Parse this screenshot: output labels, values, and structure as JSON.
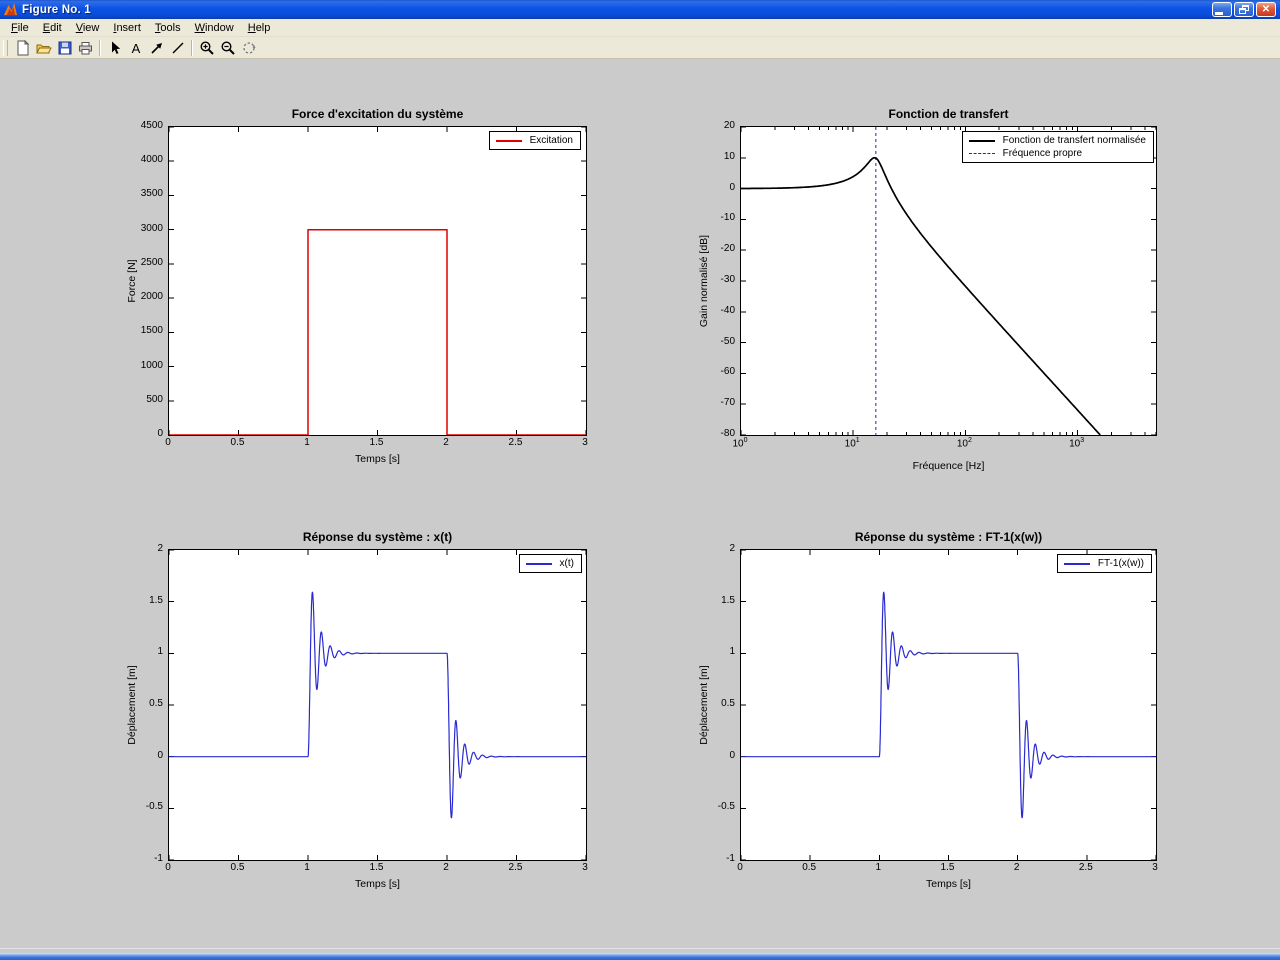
{
  "window": {
    "title": "Figure No. 1",
    "buttons": {
      "minimize": "minimize",
      "restore": "restore",
      "close": "close"
    }
  },
  "menu": {
    "items": [
      "File",
      "Edit",
      "View",
      "Insert",
      "Tools",
      "Window",
      "Help"
    ]
  },
  "toolbar": {
    "buttons": [
      "new-file",
      "open-file",
      "save",
      "print",
      "pointer",
      "text",
      "arrow",
      "line",
      "zoom-in",
      "zoom-out",
      "rotate-3d"
    ]
  },
  "chart_data": [
    {
      "id": "excitation",
      "type": "line",
      "title": "Force d'excitation du système",
      "xlabel": "Temps [s]",
      "ylabel": "Force [N]",
      "xscale": "linear",
      "xlim": [
        0,
        3
      ],
      "ylim": [
        0,
        4500
      ],
      "xticks": [
        0,
        0.5,
        1,
        1.5,
        2,
        2.5,
        3
      ],
      "yticks": [
        0,
        500,
        1000,
        1500,
        2000,
        2500,
        3000,
        3500,
        4000,
        4500
      ],
      "legend": [
        {
          "label": "Excitation",
          "color": "#dd0000",
          "style": "solid"
        }
      ],
      "series": [
        {
          "name": "Excitation",
          "color": "#dd0000",
          "width": 1.5,
          "signal": "pulse",
          "params": {
            "t_on": 1,
            "t_off": 2,
            "amplitude": 3000,
            "t_end": 3
          }
        }
      ]
    },
    {
      "id": "transfer-function",
      "type": "line",
      "title": "Fonction de transfert",
      "xlabel": "Fréquence [Hz]",
      "ylabel": "Gain normalisé [dB]",
      "xscale": "log",
      "xtick_format": "pow10",
      "xlim": [
        1,
        5000
      ],
      "ylim": [
        -80,
        20
      ],
      "xticks": [
        1,
        10,
        100,
        1000
      ],
      "yticks": [
        -80,
        -70,
        -60,
        -50,
        -40,
        -30,
        -20,
        -10,
        0,
        10,
        20
      ],
      "legend": [
        {
          "label": "Fonction de transfert normalisée",
          "color": "#000000",
          "style": "solid"
        },
        {
          "label": "Fréquence propre",
          "color": "#2222bb",
          "style": "dashed"
        }
      ],
      "annotations": [
        {
          "type": "vline",
          "x": 15.92,
          "color": "#2222bb",
          "style": "dashed"
        }
      ],
      "series": [
        {
          "name": "Fonction de transfert normalisée",
          "color": "#000000",
          "width": 1.7,
          "signal": "bode",
          "params": {
            "f0": 15.92,
            "zeta": 0.16
          }
        }
      ]
    },
    {
      "id": "response-time",
      "type": "line",
      "title": "Réponse du système : x(t)",
      "xlabel": "Temps [s]",
      "ylabel": "Déplacement [m]",
      "xscale": "linear",
      "xlim": [
        0,
        3
      ],
      "ylim": [
        -1,
        2
      ],
      "xticks": [
        0,
        0.5,
        1,
        1.5,
        2,
        2.5,
        3
      ],
      "yticks": [
        -1,
        -0.5,
        0,
        0.5,
        1,
        1.5,
        2
      ],
      "legend": [
        {
          "label": "x(t)",
          "color": "#2a2ad0",
          "style": "solid"
        }
      ],
      "series": [
        {
          "name": "x(t)",
          "color": "#2a2ad0",
          "width": 1.2,
          "signal": "step2",
          "params": {
            "f0": 15.92,
            "zeta": 0.165,
            "t_on": 1,
            "t_off": 2,
            "t_end": 3
          }
        }
      ]
    },
    {
      "id": "response-ifft",
      "type": "line",
      "title": "Réponse du système : FT-1(x(w))",
      "xlabel": "Temps [s]",
      "ylabel": "Déplacement [m]",
      "xscale": "linear",
      "xlim": [
        0,
        3
      ],
      "ylim": [
        -1,
        2
      ],
      "xticks": [
        0,
        0.5,
        1,
        1.5,
        2,
        2.5,
        3
      ],
      "yticks": [
        -1,
        -0.5,
        0,
        0.5,
        1,
        1.5,
        2
      ],
      "legend": [
        {
          "label": "FT-1(x(w))",
          "color": "#2a2ad0",
          "style": "solid"
        }
      ],
      "series": [
        {
          "name": "FT-1(x(w))",
          "color": "#2a2ad0",
          "width": 1.2,
          "signal": "step2",
          "params": {
            "f0": 15.92,
            "zeta": 0.165,
            "t_on": 1,
            "t_off": 2,
            "t_end": 3
          }
        }
      ]
    }
  ]
}
